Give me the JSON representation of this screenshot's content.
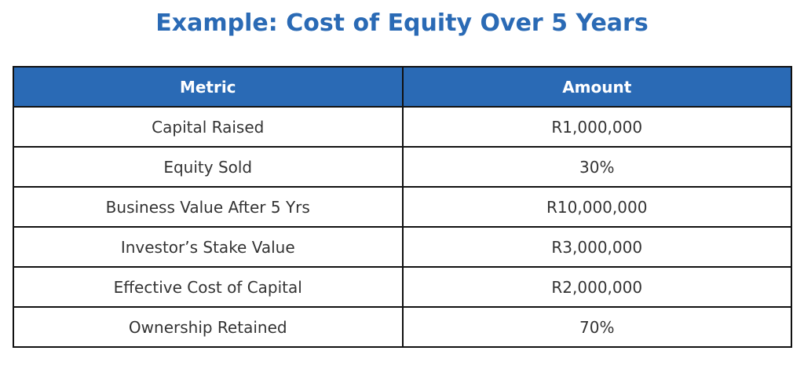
{
  "header": {
    "title": "Example: Cost of Equity Over 5 Years"
  },
  "table": {
    "columns": [
      "Metric",
      "Amount"
    ],
    "rows": [
      [
        "Capital Raised",
        "R1,000,000"
      ],
      [
        "Equity Sold",
        "30%"
      ],
      [
        "Business Value After 5 Yrs",
        "R10,000,000"
      ],
      [
        "Investor’s Stake Value",
        "R3,000,000"
      ],
      [
        "Effective Cost of Capital",
        "R2,000,000"
      ],
      [
        "Ownership Retained",
        "70%"
      ]
    ]
  }
}
